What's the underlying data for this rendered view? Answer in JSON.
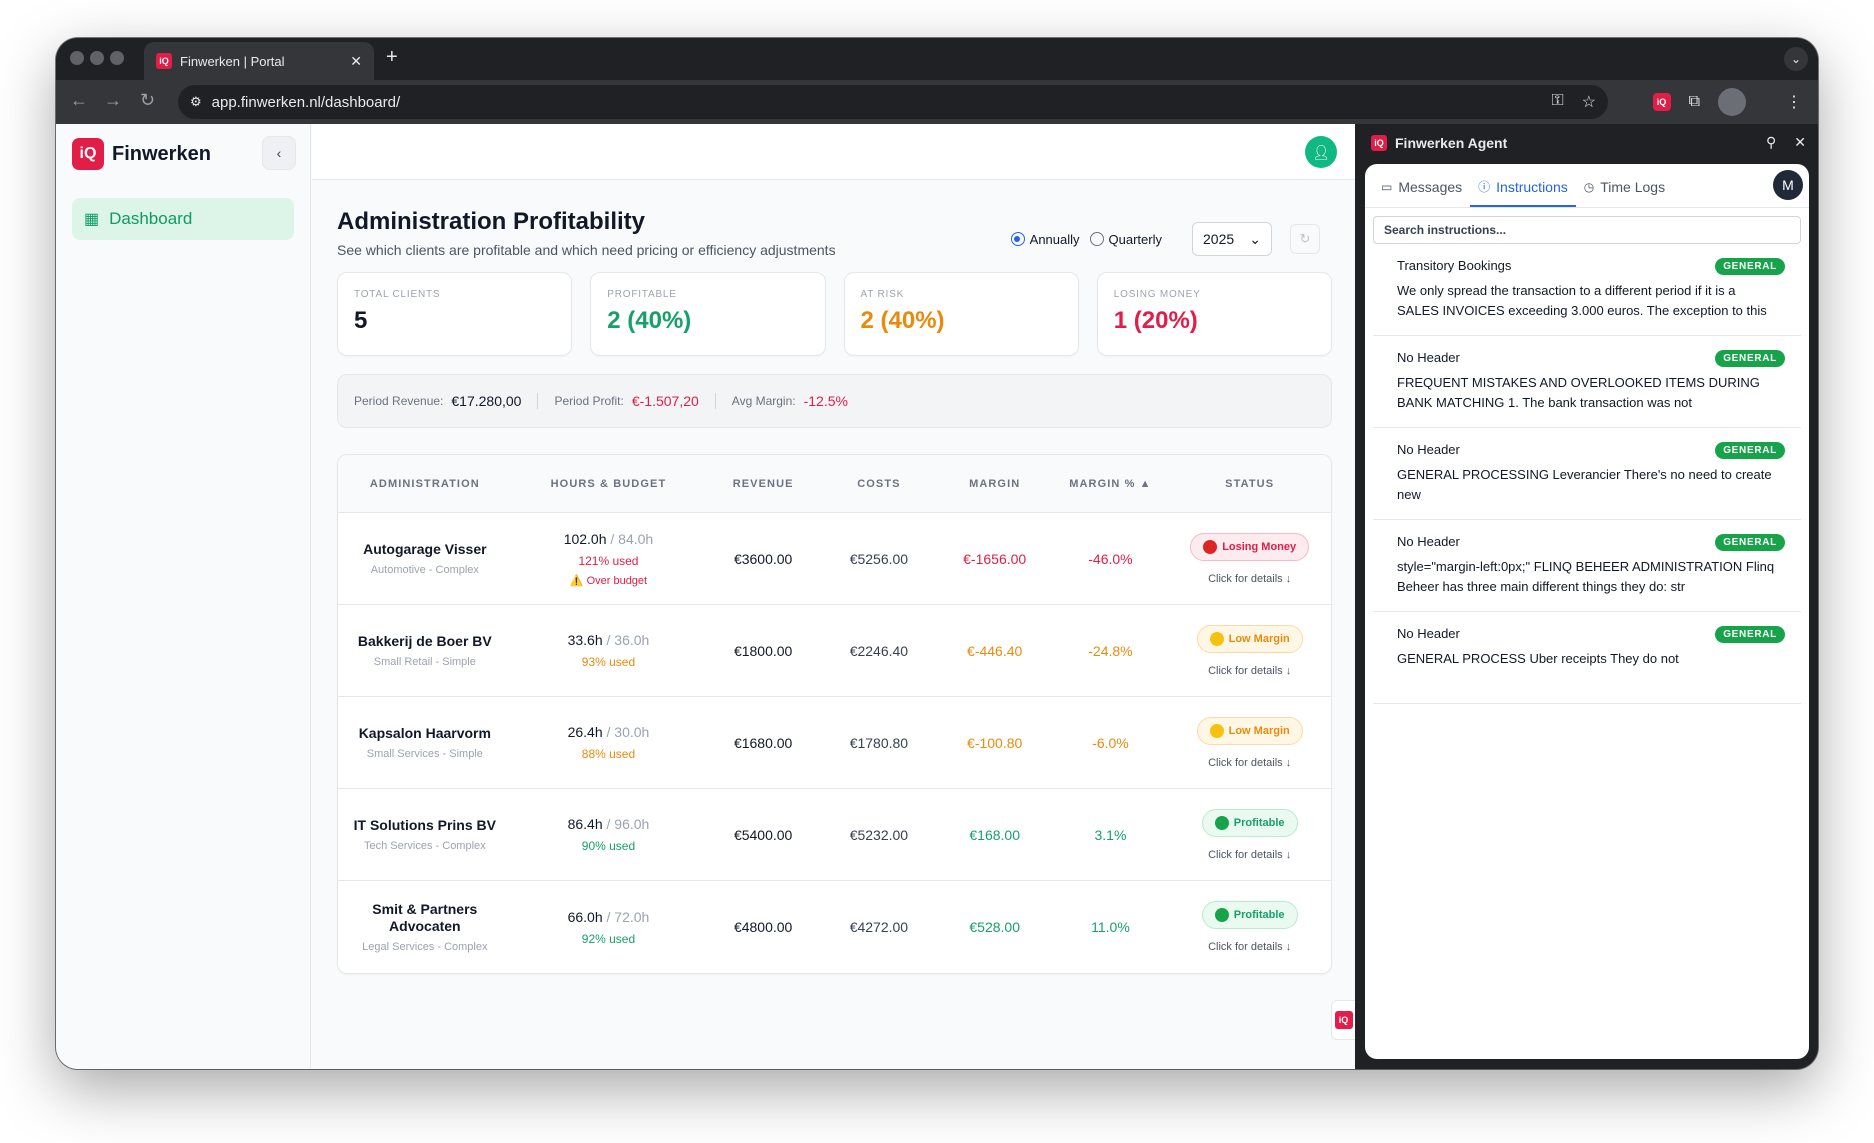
{
  "browser": {
    "tab_title": "Finwerken | Portal",
    "tab_favicon": "iQ",
    "url": "app.finwerken.nl/dashboard/",
    "ext_label": "iQ"
  },
  "sidebar": {
    "brand_logo": "iQ",
    "brand_name": "Finwerken",
    "nav_items": [
      {
        "label": "Dashboard",
        "icon": "grid-icon",
        "active": true
      }
    ]
  },
  "main": {
    "title": "Administration Profitability",
    "subtitle": "See which clients are profitable and which need pricing or efficiency adjustments",
    "period_options": [
      "Annually",
      "Quarterly"
    ],
    "selected_period": "Annually",
    "year": "2025"
  },
  "kpis": [
    {
      "label": "TOTAL CLIENTS",
      "value": "5",
      "color": "#111827"
    },
    {
      "label": "PROFITABLE",
      "value": "2 (40%)",
      "color": "#16a06a"
    },
    {
      "label": "AT RISK",
      "value": "2 (40%)",
      "color": "#ea8a0c"
    },
    {
      "label": "LOSING MONEY",
      "value": "1 (20%)",
      "color": "#e11d48"
    }
  ],
  "summary": {
    "revenue_label": "Period Revenue:",
    "revenue_value": "€17.280,00",
    "profit_label": "Period Profit:",
    "profit_value": "€-1.507,20",
    "margin_label": "Avg Margin:",
    "margin_value": "-12.5%"
  },
  "table": {
    "headers": [
      "ADMINISTRATION",
      "HOURS & BUDGET",
      "REVENUE",
      "COSTS",
      "MARGIN",
      "MARGIN % ▲",
      "STATUS"
    ],
    "details_label": "Click for details ↓",
    "over_budget_label": "⚠️ Over budget",
    "rows": [
      {
        "name": "Autogarage Visser",
        "sub": "Automotive - Complex",
        "hours": "102.0h",
        "budget": "/ 84.0h",
        "used": "121% used",
        "revenue": "€3600.00",
        "costs": "€5256.00",
        "margin": "€-1656.00",
        "margin_pct": "-46.0%",
        "status": "Losing Money",
        "tone": "red"
      },
      {
        "name": "Bakkerij de Boer BV",
        "sub": "Small Retail - Simple",
        "hours": "33.6h",
        "budget": "/ 36.0h",
        "used": "93% used",
        "revenue": "€1800.00",
        "costs": "€2246.40",
        "margin": "€-446.40",
        "margin_pct": "-24.8%",
        "status": "Low Margin",
        "tone": "orange"
      },
      {
        "name": "Kapsalon Haarvorm",
        "sub": "Small Services - Simple",
        "hours": "26.4h",
        "budget": "/ 30.0h",
        "used": "88% used",
        "revenue": "€1680.00",
        "costs": "€1780.80",
        "margin": "€-100.80",
        "margin_pct": "-6.0%",
        "status": "Low Margin",
        "tone": "orange"
      },
      {
        "name": "IT Solutions Prins BV",
        "sub": "Tech Services - Complex",
        "hours": "86.4h",
        "budget": "/ 96.0h",
        "used": "90% used",
        "revenue": "€5400.00",
        "costs": "€5232.00",
        "margin": "€168.00",
        "margin_pct": "3.1%",
        "status": "Profitable",
        "tone": "green"
      },
      {
        "name": "Smit & Partners Advocaten",
        "sub": "Legal Services - Complex",
        "hours": "66.0h",
        "budget": "/ 72.0h",
        "used": "92% used",
        "revenue": "€4800.00",
        "costs": "€4272.00",
        "margin": "€528.00",
        "margin_pct": "11.0%",
        "status": "Profitable",
        "tone": "green"
      }
    ]
  },
  "tones": {
    "red": {
      "text": "#e11d48",
      "badge_bg": "#fdecef",
      "badge_border": "#f9b8c6",
      "dot": "#dc2626"
    },
    "orange": {
      "text": "#ea8a0c",
      "badge_bg": "#fff7e6",
      "badge_border": "#fcd9a6",
      "dot": "#f5c211"
    },
    "green": {
      "text": "#16a06a",
      "badge_bg": "#eafaf1",
      "badge_border": "#b8ecd0",
      "dot": "#16a34a"
    }
  },
  "float_button": "iQ",
  "agent": {
    "logo": "iQ",
    "title": "Finwerken Agent",
    "tabs": [
      {
        "label": "Messages",
        "icon": "chat-icon"
      },
      {
        "label": "Instructions",
        "icon": "info-icon",
        "active": true
      },
      {
        "label": "Time Logs",
        "icon": "clock-icon"
      }
    ],
    "user_initial": "M",
    "search_placeholder": "Search instructions...",
    "instructions": [
      {
        "title": "Transitory Bookings",
        "badge": "GENERAL",
        "text": "We only spread the transaction to a different period if it is a SALES INVOICES exceeding 3.000 euros. The exception to this i..."
      },
      {
        "title": "No Header",
        "badge": "GENERAL",
        "text": "FREQUENT MISTAKES AND OVERLOOKED ITEMS DURING BANK MATCHING      1.  The bank transaction was not"
      },
      {
        "title": "No Header",
        "badge": "GENERAL",
        "text": "GENERAL PROCESSING Leverancier          There's no need to create new"
      },
      {
        "title": "No Header",
        "badge": "GENERAL",
        "text": "style=\"margin-left:0px;\" FLINQ BEHEER ADMINISTRATION Flinq Beheer has three main different things they do: str"
      },
      {
        "title": "No Header",
        "badge": "GENERAL",
        "text": "GENERAL PROCESS Uber receipts            They do not"
      }
    ]
  }
}
